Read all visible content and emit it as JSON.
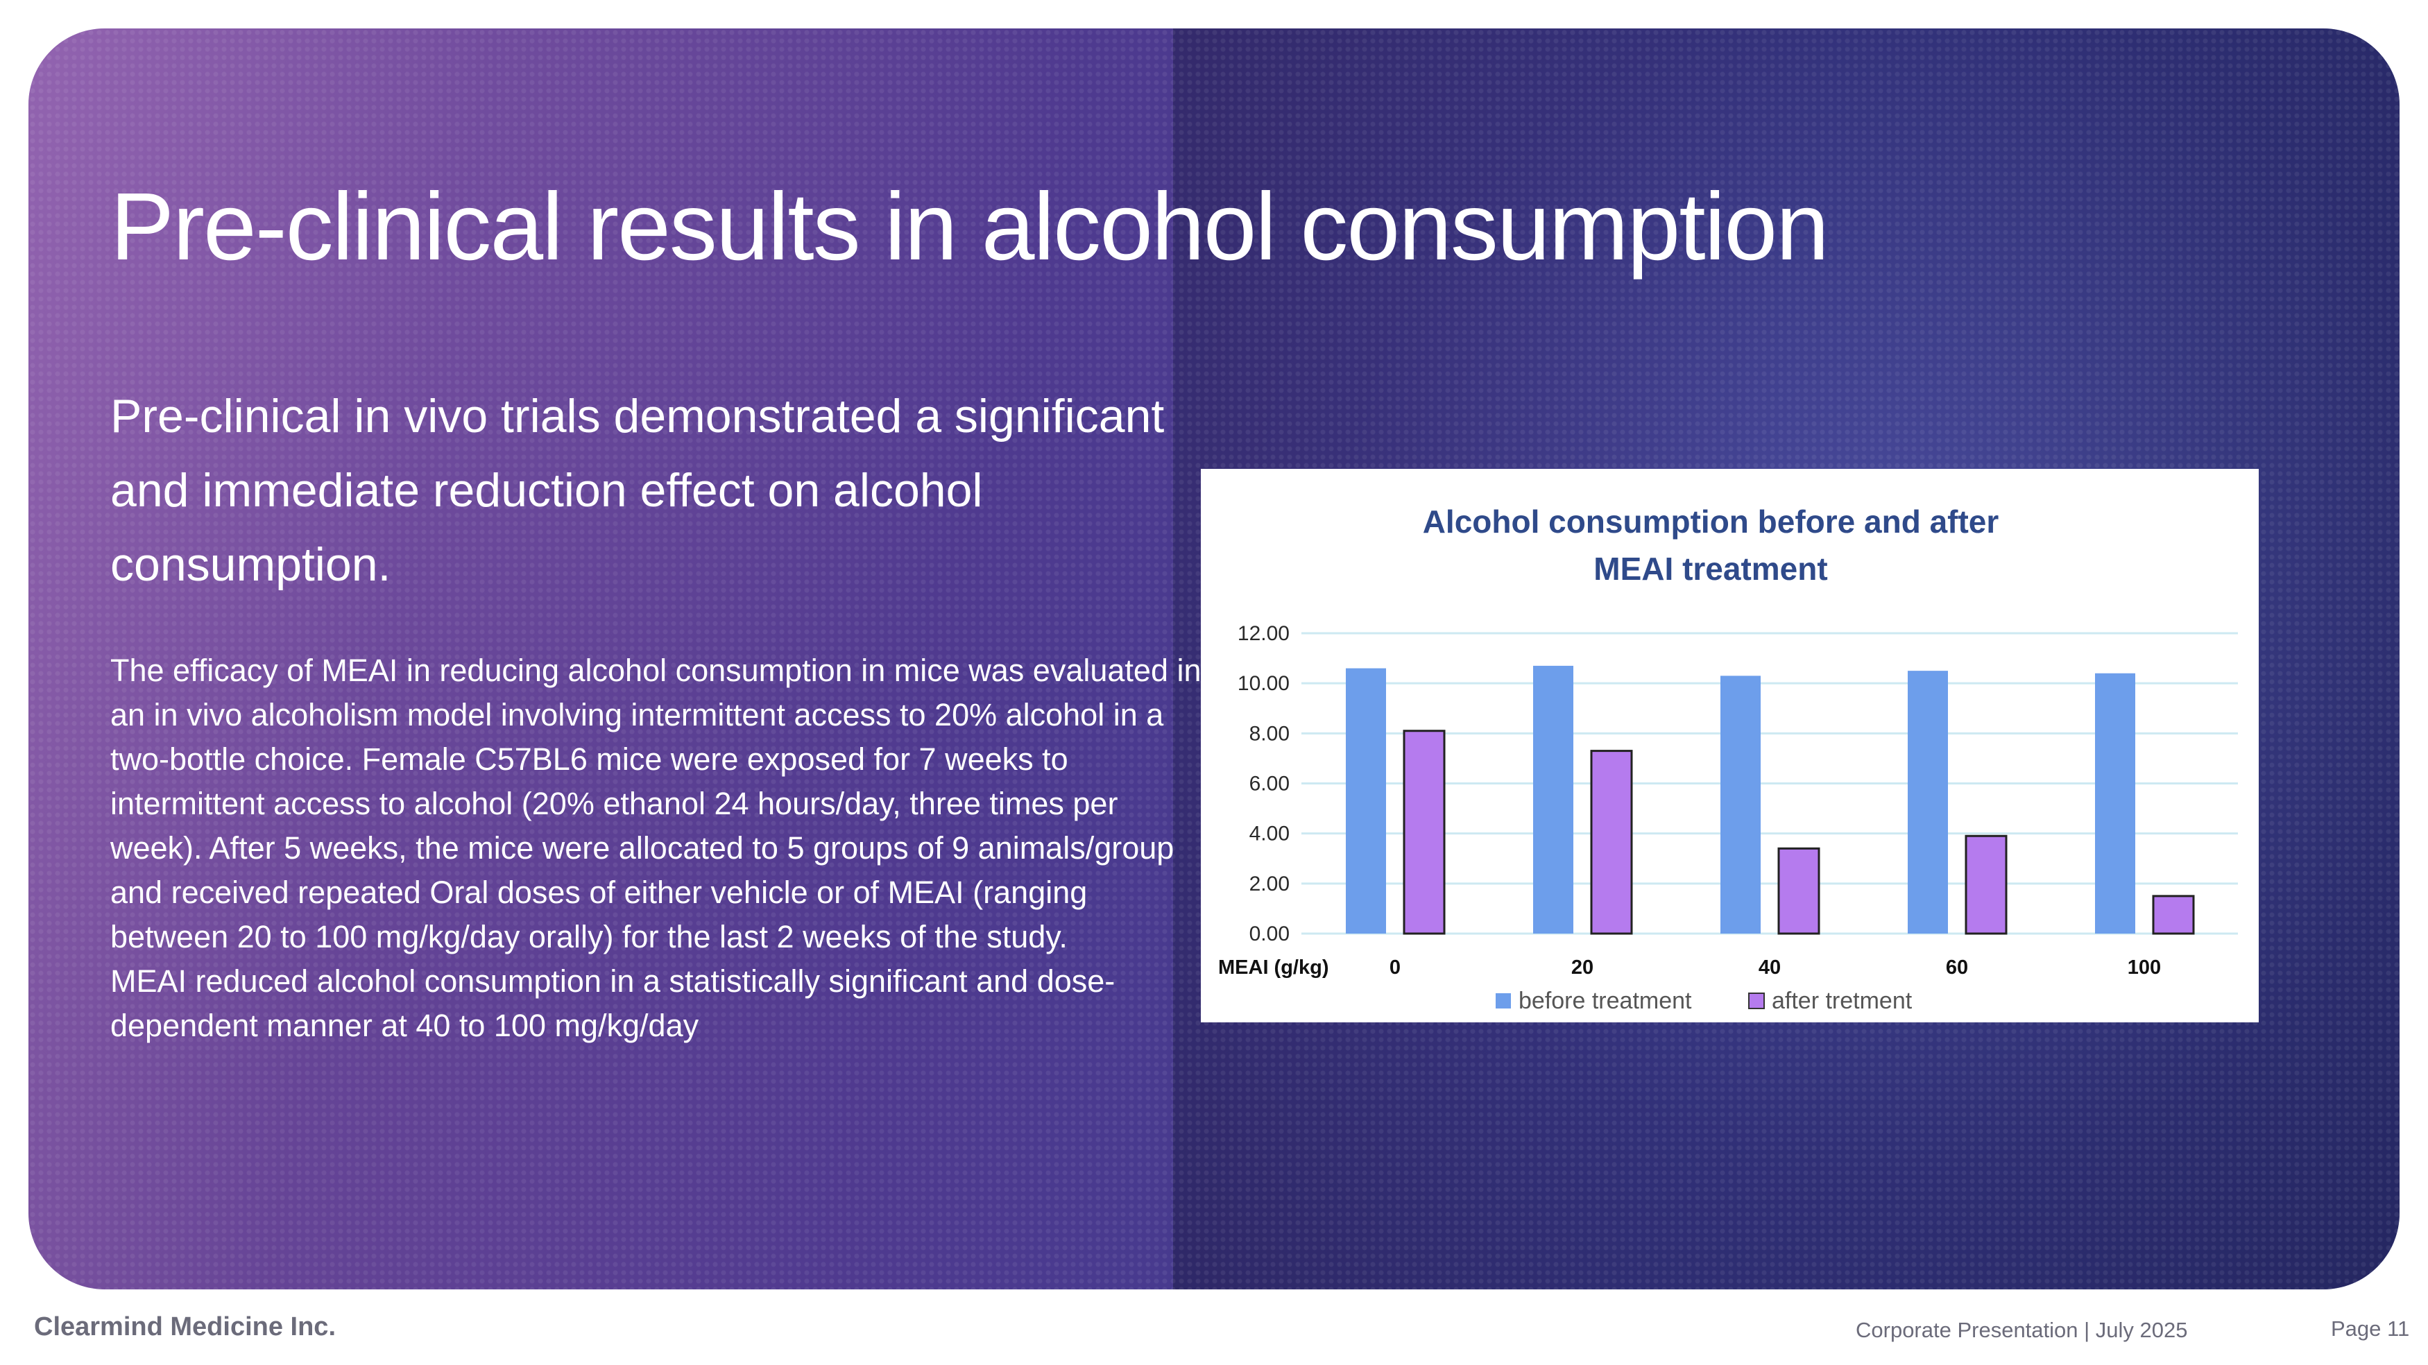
{
  "slide": {
    "title": "Pre-clinical results in alcohol consumption",
    "subtitle": "Pre-clinical in vivo trials demonstrated a significant and immediate reduction effect on alcohol consumption.",
    "body_p1": "The efficacy of MEAI in reducing alcohol consumption in mice was evaluated in an in vivo alcoholism model involving intermittent access to 20% alcohol in a two-bottle choice. Female C57BL6 mice were exposed for 7 weeks to intermittent access to alcohol (20% ethanol 24 hours/day, three times per week). After 5 weeks, the mice were allocated to 5 groups of 9 animals/group and received repeated Oral doses of either vehicle or of MEAI (ranging between 20 to 100 mg/kg/day orally) for the last 2 weeks of the study.",
    "body_p2": "MEAI reduced alcohol consumption in a statistically significant and dose-dependent manner at 40 to 100 mg/kg/day"
  },
  "footer": {
    "company": "Clearmind Medicine Inc.",
    "center": "Corporate Presentation  |  July 2025",
    "page": "Page 11"
  },
  "chart_data": {
    "type": "bar",
    "title_line1": "Alcohol consumption before and after",
    "title_line2": "MEAI treatment",
    "xlabel": "MEAI (g/kg)",
    "categories": [
      "0",
      "20",
      "40",
      "60",
      "100"
    ],
    "series": [
      {
        "name": "before treatment",
        "values": [
          10.6,
          10.7,
          10.3,
          10.5,
          10.4
        ],
        "color": "#6d9eeb"
      },
      {
        "name": "after tretment",
        "values": [
          8.1,
          7.3,
          3.4,
          3.9,
          1.5
        ],
        "color": "#b57bee"
      }
    ],
    "ylim": [
      0,
      12
    ],
    "yticks": [
      "0.00",
      "2.00",
      "4.00",
      "6.00",
      "8.00",
      "10.00",
      "12.00"
    ],
    "grid": true,
    "legend": "bottom",
    "title_color": "#2f4a8a"
  }
}
